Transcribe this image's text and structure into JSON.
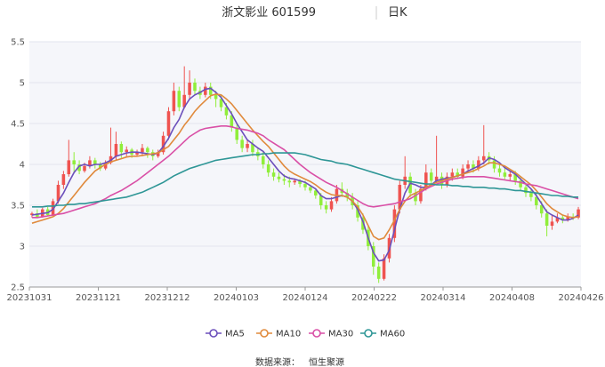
{
  "chart_data": {
    "type": "candlestick",
    "title": "浙文影业 601599",
    "period": "日K",
    "source_label": "数据来源：",
    "source_value": "恒生聚源",
    "ylim": [
      2.5,
      5.5
    ],
    "y_ticks": [
      "2.5",
      "3",
      "3.5",
      "4",
      "4.5",
      "5",
      "5.5"
    ],
    "x_ticks": [
      "20231031",
      "20231121",
      "20231212",
      "20240103",
      "20240124",
      "20240222",
      "20240314",
      "20240408",
      "20240426"
    ],
    "up_color": "#ef5350",
    "down_color": "#90ee3a",
    "candles": [
      [
        3.38,
        3.4,
        3.42,
        3.35
      ],
      [
        3.4,
        3.36,
        3.45,
        3.34
      ],
      [
        3.36,
        3.45,
        3.47,
        3.35
      ],
      [
        3.45,
        3.38,
        3.48,
        3.37
      ],
      [
        3.38,
        3.55,
        3.58,
        3.37
      ],
      [
        3.55,
        3.75,
        3.8,
        3.52
      ],
      [
        3.75,
        3.88,
        3.92,
        3.7
      ],
      [
        3.88,
        4.05,
        4.3,
        3.85
      ],
      [
        4.05,
        4.0,
        4.15,
        3.9
      ],
      [
        4.0,
        3.92,
        4.05,
        3.88
      ],
      [
        3.92,
        3.98,
        4.02,
        3.9
      ],
      [
        3.98,
        4.05,
        4.1,
        3.95
      ],
      [
        4.05,
        4.0,
        4.08,
        3.95
      ],
      [
        4.0,
        3.95,
        4.03,
        3.92
      ],
      [
        3.95,
        4.02,
        4.05,
        3.93
      ],
      [
        4.02,
        4.1,
        4.45,
        4.0
      ],
      [
        4.1,
        4.25,
        4.4,
        4.05
      ],
      [
        4.25,
        4.15,
        4.28,
        4.08
      ],
      [
        4.15,
        4.18,
        4.22,
        4.1
      ],
      [
        4.18,
        4.12,
        4.2,
        4.08
      ],
      [
        4.12,
        4.15,
        4.18,
        4.1
      ],
      [
        4.15,
        4.2,
        4.25,
        4.1
      ],
      [
        4.2,
        4.15,
        4.22,
        4.08
      ],
      [
        4.15,
        4.1,
        4.18,
        4.05
      ],
      [
        4.1,
        4.15,
        4.18,
        4.08
      ],
      [
        4.15,
        4.35,
        4.4,
        4.12
      ],
      [
        4.35,
        4.65,
        4.7,
        4.3
      ],
      [
        4.65,
        4.9,
        5.0,
        4.6
      ],
      [
        4.9,
        4.7,
        4.95,
        4.65
      ],
      [
        4.7,
        4.85,
        5.2,
        4.68
      ],
      [
        4.85,
        5.0,
        5.15,
        4.8
      ],
      [
        5.0,
        4.9,
        5.05,
        4.85
      ],
      [
        4.9,
        4.85,
        4.95,
        4.8
      ],
      [
        4.85,
        4.95,
        5.0,
        4.82
      ],
      [
        4.95,
        4.85,
        5.0,
        4.8
      ],
      [
        4.85,
        4.8,
        4.9,
        4.7
      ],
      [
        4.8,
        4.7,
        4.85,
        4.65
      ],
      [
        4.7,
        4.6,
        4.75,
        4.55
      ],
      [
        4.6,
        4.45,
        4.65,
        4.4
      ],
      [
        4.45,
        4.3,
        4.5,
        4.25
      ],
      [
        4.3,
        4.2,
        4.35,
        4.15
      ],
      [
        4.2,
        4.25,
        4.3,
        4.15
      ],
      [
        4.25,
        4.15,
        4.3,
        4.1
      ],
      [
        4.15,
        4.1,
        4.2,
        4.05
      ],
      [
        4.1,
        4.0,
        4.15,
        3.95
      ],
      [
        4.0,
        3.9,
        4.05,
        3.85
      ],
      [
        3.9,
        3.85,
        3.95,
        3.8
      ],
      [
        3.85,
        3.82,
        3.9,
        3.78
      ],
      [
        3.82,
        3.8,
        3.88,
        3.75
      ],
      [
        3.8,
        3.78,
        3.85,
        3.72
      ],
      [
        3.78,
        3.8,
        3.83,
        3.75
      ],
      [
        3.8,
        3.76,
        3.82,
        3.72
      ],
      [
        3.76,
        3.72,
        3.8,
        3.68
      ],
      [
        3.72,
        3.68,
        3.75,
        3.65
      ],
      [
        3.68,
        3.62,
        3.7,
        3.58
      ],
      [
        3.62,
        3.5,
        3.65,
        3.45
      ],
      [
        3.5,
        3.45,
        3.55,
        3.4
      ],
      [
        3.45,
        3.55,
        3.6,
        3.42
      ],
      [
        3.55,
        3.7,
        3.75,
        3.52
      ],
      [
        3.7,
        3.65,
        3.78,
        3.6
      ],
      [
        3.65,
        3.6,
        3.7,
        3.55
      ],
      [
        3.6,
        3.5,
        3.65,
        3.45
      ],
      [
        3.5,
        3.35,
        3.55,
        3.3
      ],
      [
        3.35,
        3.2,
        3.4,
        3.15
      ],
      [
        3.2,
        3.0,
        3.25,
        2.95
      ],
      [
        3.0,
        2.75,
        3.05,
        2.65
      ],
      [
        2.75,
        2.6,
        2.8,
        2.55
      ],
      [
        2.6,
        2.85,
        2.9,
        2.58
      ],
      [
        2.85,
        3.1,
        3.15,
        2.8
      ],
      [
        3.1,
        3.45,
        3.5,
        3.05
      ],
      [
        3.45,
        3.75,
        3.8,
        3.4
      ],
      [
        3.75,
        3.85,
        4.1,
        3.7
      ],
      [
        3.85,
        3.65,
        3.9,
        3.6
      ],
      [
        3.65,
        3.55,
        3.7,
        3.5
      ],
      [
        3.55,
        3.7,
        3.75,
        3.52
      ],
      [
        3.7,
        3.9,
        4.0,
        3.68
      ],
      [
        3.9,
        3.8,
        3.95,
        3.75
      ],
      [
        3.8,
        3.85,
        4.35,
        3.78
      ],
      [
        3.85,
        3.75,
        3.9,
        3.7
      ],
      [
        3.75,
        3.85,
        3.9,
        3.72
      ],
      [
        3.85,
        3.9,
        3.95,
        3.8
      ],
      [
        3.9,
        3.85,
        3.95,
        3.82
      ],
      [
        3.85,
        3.95,
        4.0,
        3.82
      ],
      [
        3.95,
        4.0,
        4.05,
        3.9
      ],
      [
        4.0,
        3.95,
        4.05,
        3.9
      ],
      [
        3.95,
        4.05,
        4.1,
        3.92
      ],
      [
        4.05,
        4.1,
        4.48,
        4.0
      ],
      [
        4.1,
        4.05,
        4.15,
        4.0
      ],
      [
        4.05,
        3.95,
        4.1,
        3.9
      ],
      [
        3.95,
        3.9,
        4.0,
        3.85
      ],
      [
        3.9,
        3.85,
        3.95,
        3.82
      ],
      [
        3.85,
        3.88,
        3.92,
        3.8
      ],
      [
        3.88,
        3.8,
        3.92,
        3.75
      ],
      [
        3.8,
        3.72,
        3.85,
        3.68
      ],
      [
        3.72,
        3.65,
        3.75,
        3.6
      ],
      [
        3.65,
        3.6,
        3.7,
        3.55
      ],
      [
        3.6,
        3.5,
        3.65,
        3.45
      ],
      [
        3.5,
        3.4,
        3.55,
        3.35
      ],
      [
        3.4,
        3.25,
        3.45,
        3.12
      ],
      [
        3.25,
        3.3,
        3.38,
        3.2
      ],
      [
        3.3,
        3.35,
        3.4,
        3.28
      ],
      [
        3.35,
        3.32,
        3.38,
        3.28
      ],
      [
        3.32,
        3.36,
        3.4,
        3.3
      ],
      [
        3.36,
        3.35,
        3.4,
        3.32
      ],
      [
        3.35,
        3.45,
        3.48,
        3.33
      ]
    ],
    "series": [
      {
        "name": "MA5",
        "color": "#6b4fbb",
        "values": [
          3.38,
          3.39,
          3.4,
          3.41,
          3.45,
          3.55,
          3.65,
          3.78,
          3.9,
          3.98,
          4.0,
          3.98,
          4.0,
          4.0,
          4.02,
          4.05,
          4.1,
          4.12,
          4.14,
          4.15,
          4.15,
          4.14,
          4.13,
          4.12,
          4.14,
          4.22,
          4.32,
          4.45,
          4.55,
          4.7,
          4.8,
          4.85,
          4.88,
          4.92,
          4.93,
          4.88,
          4.82,
          4.72,
          4.62,
          4.5,
          4.4,
          4.3,
          4.25,
          4.2,
          4.16,
          4.08,
          4.0,
          3.92,
          3.86,
          3.83,
          3.82,
          3.8,
          3.78,
          3.74,
          3.7,
          3.62,
          3.58,
          3.58,
          3.6,
          3.62,
          3.6,
          3.55,
          3.45,
          3.3,
          3.1,
          2.92,
          2.82,
          2.83,
          2.95,
          3.2,
          3.45,
          3.65,
          3.77,
          3.75,
          3.72,
          3.72,
          3.75,
          3.8,
          3.82,
          3.83,
          3.84,
          3.86,
          3.88,
          3.92,
          3.95,
          3.98,
          4.02,
          4.08,
          4.06,
          4.02,
          3.96,
          3.92,
          3.88,
          3.82,
          3.76,
          3.7,
          3.62,
          3.52,
          3.42,
          3.38,
          3.35,
          3.32,
          3.32,
          3.34,
          3.38
        ]
      },
      {
        "name": "MA10",
        "color": "#e08a3c",
        "values": [
          3.28,
          3.3,
          3.32,
          3.34,
          3.36,
          3.4,
          3.46,
          3.54,
          3.62,
          3.7,
          3.78,
          3.85,
          3.92,
          3.96,
          4.0,
          4.03,
          4.05,
          4.07,
          4.09,
          4.1,
          4.1,
          4.11,
          4.12,
          4.13,
          4.14,
          4.18,
          4.22,
          4.3,
          4.38,
          4.48,
          4.56,
          4.65,
          4.72,
          4.78,
          4.84,
          4.86,
          4.85,
          4.8,
          4.74,
          4.66,
          4.58,
          4.5,
          4.42,
          4.35,
          4.28,
          4.22,
          4.14,
          4.06,
          3.98,
          3.92,
          3.88,
          3.85,
          3.82,
          3.79,
          3.75,
          3.7,
          3.66,
          3.63,
          3.62,
          3.62,
          3.6,
          3.55,
          3.48,
          3.38,
          3.25,
          3.12,
          3.08,
          3.1,
          3.2,
          3.32,
          3.45,
          3.55,
          3.62,
          3.65,
          3.68,
          3.72,
          3.75,
          3.78,
          3.8,
          3.82,
          3.84,
          3.86,
          3.88,
          3.9,
          3.92,
          3.95,
          3.98,
          4.02,
          4.02,
          4.0,
          3.98,
          3.94,
          3.9,
          3.85,
          3.8,
          3.75,
          3.68,
          3.6,
          3.52,
          3.46,
          3.42,
          3.38,
          3.36,
          3.35,
          3.36
        ]
      },
      {
        "name": "MA30",
        "color": "#d94fa6",
        "values": [
          3.35,
          3.35,
          3.36,
          3.37,
          3.38,
          3.39,
          3.4,
          3.42,
          3.44,
          3.46,
          3.48,
          3.5,
          3.52,
          3.55,
          3.58,
          3.62,
          3.65,
          3.68,
          3.72,
          3.76,
          3.8,
          3.85,
          3.9,
          3.95,
          4.0,
          4.05,
          4.1,
          4.16,
          4.22,
          4.28,
          4.34,
          4.38,
          4.42,
          4.44,
          4.45,
          4.46,
          4.47,
          4.47,
          4.46,
          4.44,
          4.43,
          4.42,
          4.4,
          4.38,
          4.35,
          4.3,
          4.26,
          4.22,
          4.18,
          4.12,
          4.06,
          4.0,
          3.95,
          3.9,
          3.86,
          3.82,
          3.78,
          3.75,
          3.72,
          3.68,
          3.64,
          3.6,
          3.56,
          3.52,
          3.49,
          3.48,
          3.49,
          3.5,
          3.51,
          3.52,
          3.54,
          3.56,
          3.58,
          3.62,
          3.66,
          3.7,
          3.73,
          3.76,
          3.78,
          3.8,
          3.82,
          3.83,
          3.84,
          3.85,
          3.85,
          3.85,
          3.85,
          3.84,
          3.83,
          3.82,
          3.81,
          3.8,
          3.79,
          3.78,
          3.76,
          3.75,
          3.74,
          3.72,
          3.7,
          3.68,
          3.66,
          3.64,
          3.62,
          3.6,
          3.58
        ]
      },
      {
        "name": "MA60",
        "color": "#2e9696",
        "values": [
          3.48,
          3.48,
          3.48,
          3.49,
          3.49,
          3.5,
          3.5,
          3.51,
          3.51,
          3.52,
          3.52,
          3.53,
          3.54,
          3.55,
          3.56,
          3.57,
          3.58,
          3.59,
          3.6,
          3.62,
          3.64,
          3.66,
          3.69,
          3.72,
          3.75,
          3.78,
          3.82,
          3.86,
          3.89,
          3.92,
          3.95,
          3.97,
          3.99,
          4.01,
          4.03,
          4.05,
          4.06,
          4.07,
          4.08,
          4.09,
          4.1,
          4.11,
          4.12,
          4.12,
          4.13,
          4.13,
          4.14,
          4.14,
          4.14,
          4.14,
          4.14,
          4.13,
          4.12,
          4.1,
          4.08,
          4.06,
          4.05,
          4.04,
          4.02,
          4.01,
          4.0,
          3.98,
          3.96,
          3.94,
          3.92,
          3.9,
          3.88,
          3.86,
          3.84,
          3.82,
          3.81,
          3.8,
          3.79,
          3.78,
          3.77,
          3.76,
          3.76,
          3.75,
          3.75,
          3.75,
          3.74,
          3.74,
          3.73,
          3.73,
          3.72,
          3.72,
          3.72,
          3.71,
          3.71,
          3.7,
          3.7,
          3.69,
          3.68,
          3.68,
          3.67,
          3.66,
          3.65,
          3.64,
          3.63,
          3.62,
          3.62,
          3.61,
          3.61,
          3.6,
          3.6
        ]
      }
    ]
  }
}
